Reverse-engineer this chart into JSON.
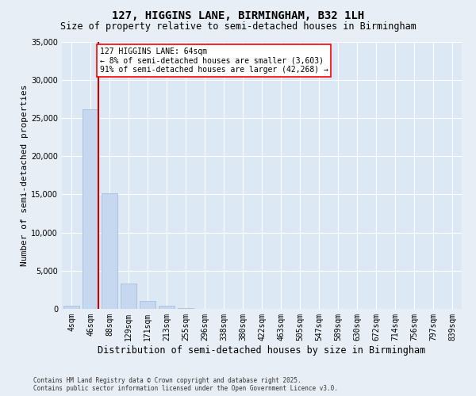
{
  "title_line1": "127, HIGGINS LANE, BIRMINGHAM, B32 1LH",
  "title_line2": "Size of property relative to semi-detached houses in Birmingham",
  "xlabel": "Distribution of semi-detached houses by size in Birmingham",
  "ylabel": "Number of semi-detached properties",
  "annotation_title": "127 HIGGINS LANE: 64sqm",
  "annotation_line1": "← 8% of semi-detached houses are smaller (3,603)",
  "annotation_line2": "91% of semi-detached houses are larger (42,268) →",
  "footer_line1": "Contains HM Land Registry data © Crown copyright and database right 2025.",
  "footer_line2": "Contains public sector information licensed under the Open Government Licence v3.0.",
  "bar_categories": [
    "4sqm",
    "46sqm",
    "88sqm",
    "129sqm",
    "171sqm",
    "213sqm",
    "255sqm",
    "296sqm",
    "338sqm",
    "380sqm",
    "422sqm",
    "463sqm",
    "505sqm",
    "547sqm",
    "589sqm",
    "630sqm",
    "672sqm",
    "714sqm",
    "756sqm",
    "797sqm",
    "839sqm"
  ],
  "bar_values": [
    400,
    26100,
    15100,
    3300,
    1050,
    400,
    150,
    0,
    0,
    0,
    0,
    0,
    0,
    0,
    0,
    0,
    0,
    0,
    0,
    0,
    0
  ],
  "bar_color": "#c5d8f0",
  "bar_edge_color": "#a0b8d8",
  "vline_color": "#cc0000",
  "vline_x": 1.43,
  "ylim": [
    0,
    35000
  ],
  "yticks": [
    0,
    5000,
    10000,
    15000,
    20000,
    25000,
    30000,
    35000
  ],
  "background_color": "#dde8f5",
  "fig_background_color": "#e8eef5",
  "grid_color": "#ffffff",
  "title_fontsize": 10,
  "subtitle_fontsize": 8.5,
  "axis_label_fontsize": 8,
  "tick_fontsize": 7,
  "annotation_fontsize": 7
}
